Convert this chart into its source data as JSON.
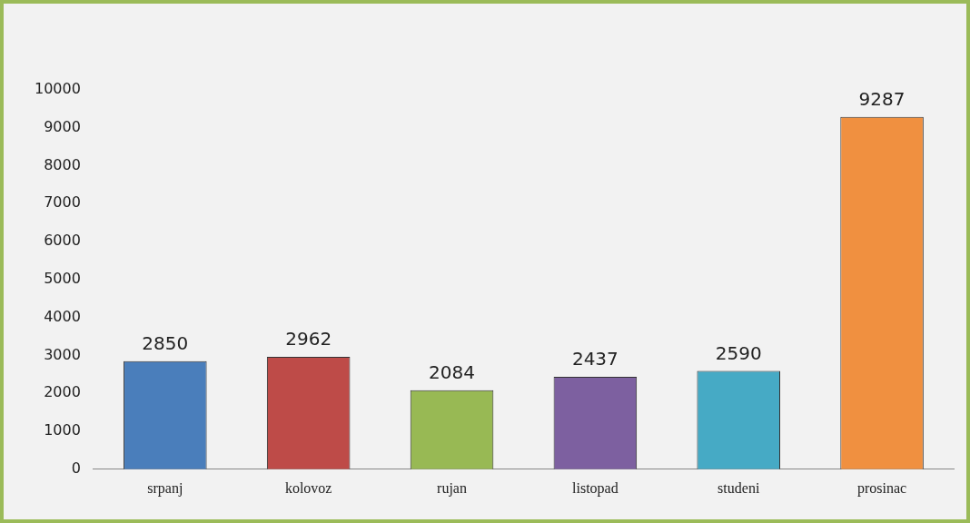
{
  "chart_data": {
    "type": "bar",
    "categories": [
      "srpanj",
      "kolovoz",
      "rujan",
      "listopad",
      "studeni",
      "prosinac"
    ],
    "values": [
      2850,
      2962,
      2084,
      2437,
      2590,
      9287
    ],
    "colors": [
      "#4a7ebb",
      "#be4b48",
      "#98b954",
      "#7d60a0",
      "#46aac5",
      "#f09040"
    ],
    "ylim": [
      0,
      10000
    ],
    "yticks": [
      0,
      1000,
      2000,
      3000,
      4000,
      5000,
      6000,
      7000,
      8000,
      9000,
      10000
    ],
    "grid": false,
    "legend": false,
    "data_labels": true
  }
}
